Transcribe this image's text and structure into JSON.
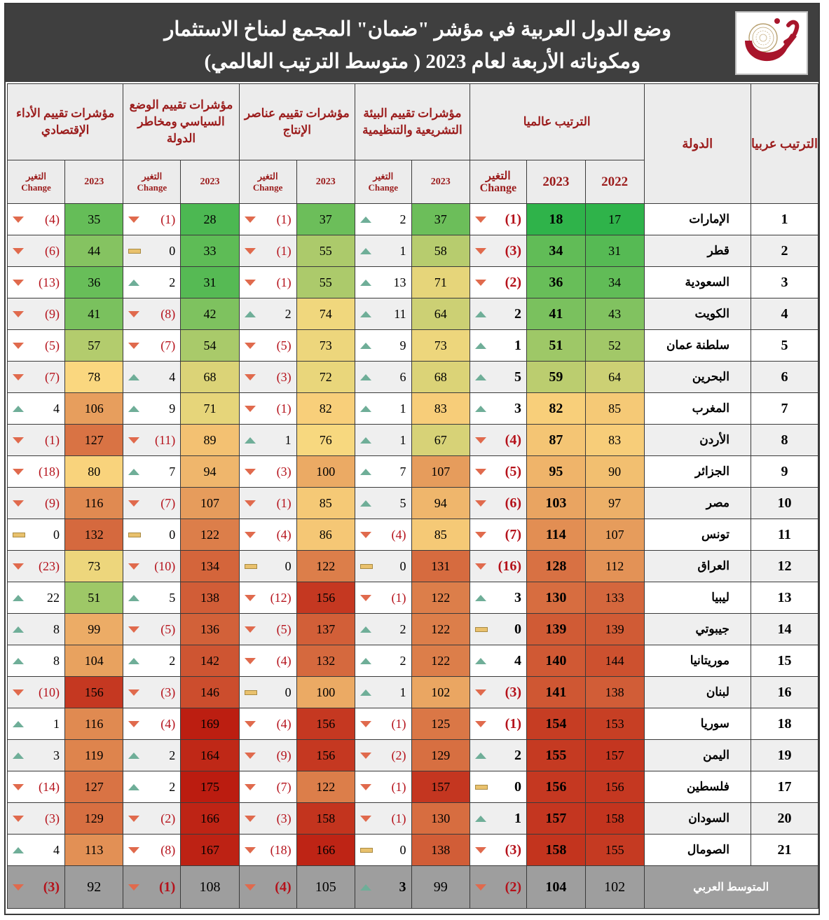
{
  "title": {
    "line1": "وضع الدول العربية في مؤشر \"ضمان\" المجمع لمناخ الاستثمار",
    "line2": "ومكوناته الأربعة لعام 2023 ( متوسط الترتيب العالمي)"
  },
  "logo": {
    "letter": "ض",
    "icon": "dhaman-logo-icon"
  },
  "headers": {
    "arab_rank": "الترتيب عربيا",
    "country": "الدولة",
    "global": "الترتيب عالميا",
    "legal": "مؤشرات تقييم البيئة التشريعية والتنظيمية",
    "production": "مؤشرات تقييم عناصر الإنتاج",
    "political": "مؤشرات تقييم الوضع السياسي ومخاطر الدولة",
    "economic": "مؤشرات تقييم الأداء الإقتصادي",
    "y2022": "2022",
    "y2023": "2023",
    "change_ar": "التغير",
    "change_en": "Change"
  },
  "colors": {
    "scale_best": "#2fb34a",
    "scale_mid": "#fbd980",
    "scale_worst": "#bb1c10",
    "down_marker": "#e06a4d",
    "up_marker": "#6fae98",
    "flat_marker": "#e9c16d",
    "header_label": "#9b1c1c"
  },
  "rows": [
    {
      "rank": "1",
      "country": "الإمارات",
      "g2022": 17,
      "g2023": 18,
      "gchg": "(1)",
      "gdir": "down",
      "legal": 37,
      "legal_chg": "2",
      "legal_dir": "up",
      "prod": 37,
      "prod_chg": "(1)",
      "prod_dir": "down",
      "pol": 28,
      "pol_chg": "(1)",
      "pol_dir": "down",
      "eco": 35,
      "eco_chg": "(4)",
      "eco_dir": "down"
    },
    {
      "rank": "2",
      "country": "قطر",
      "g2022": 31,
      "g2023": 34,
      "gchg": "(3)",
      "gdir": "down",
      "legal": 58,
      "legal_chg": "1",
      "legal_dir": "up",
      "prod": 55,
      "prod_chg": "(1)",
      "prod_dir": "down",
      "pol": 33,
      "pol_chg": "0",
      "pol_dir": "same",
      "eco": 44,
      "eco_chg": "(6)",
      "eco_dir": "down"
    },
    {
      "rank": "3",
      "country": "السعودية",
      "g2022": 34,
      "g2023": 36,
      "gchg": "(2)",
      "gdir": "down",
      "legal": 71,
      "legal_chg": "13",
      "legal_dir": "up",
      "prod": 55,
      "prod_chg": "(1)",
      "prod_dir": "down",
      "pol": 31,
      "pol_chg": "2",
      "pol_dir": "up",
      "eco": 36,
      "eco_chg": "(13)",
      "eco_dir": "down"
    },
    {
      "rank": "4",
      "country": "الكويت",
      "g2022": 43,
      "g2023": 41,
      "gchg": "2",
      "gdir": "up",
      "legal": 64,
      "legal_chg": "11",
      "legal_dir": "up",
      "prod": 74,
      "prod_chg": "2",
      "prod_dir": "up",
      "pol": 42,
      "pol_chg": "(8)",
      "pol_dir": "down",
      "eco": 41,
      "eco_chg": "(9)",
      "eco_dir": "down"
    },
    {
      "rank": "5",
      "country": "سلطنة عمان",
      "g2022": 52,
      "g2023": 51,
      "gchg": "1",
      "gdir": "up",
      "legal": 73,
      "legal_chg": "9",
      "legal_dir": "up",
      "prod": 73,
      "prod_chg": "(5)",
      "prod_dir": "down",
      "pol": 54,
      "pol_chg": "(7)",
      "pol_dir": "down",
      "eco": 57,
      "eco_chg": "(5)",
      "eco_dir": "down"
    },
    {
      "rank": "6",
      "country": "البحرين",
      "g2022": 64,
      "g2023": 59,
      "gchg": "5",
      "gdir": "up",
      "legal": 68,
      "legal_chg": "6",
      "legal_dir": "up",
      "prod": 72,
      "prod_chg": "(3)",
      "prod_dir": "down",
      "pol": 68,
      "pol_chg": "4",
      "pol_dir": "up",
      "eco": 78,
      "eco_chg": "(7)",
      "eco_dir": "down"
    },
    {
      "rank": "7",
      "country": "المغرب",
      "g2022": 85,
      "g2023": 82,
      "gchg": "3",
      "gdir": "up",
      "legal": 83,
      "legal_chg": "1",
      "legal_dir": "up",
      "prod": 82,
      "prod_chg": "(1)",
      "prod_dir": "down",
      "pol": 71,
      "pol_chg": "9",
      "pol_dir": "up",
      "eco": 106,
      "eco_chg": "4",
      "eco_dir": "up"
    },
    {
      "rank": "8",
      "country": "الأردن",
      "g2022": 83,
      "g2023": 87,
      "gchg": "(4)",
      "gdir": "down",
      "legal": 67,
      "legal_chg": "1",
      "legal_dir": "up",
      "prod": 76,
      "prod_chg": "1",
      "prod_dir": "up",
      "pol": 89,
      "pol_chg": "(11)",
      "pol_dir": "down",
      "eco": 127,
      "eco_chg": "(1)",
      "eco_dir": "down"
    },
    {
      "rank": "9",
      "country": "الجزائر",
      "g2022": 90,
      "g2023": 95,
      "gchg": "(5)",
      "gdir": "down",
      "legal": 107,
      "legal_chg": "7",
      "legal_dir": "up",
      "prod": 100,
      "prod_chg": "(3)",
      "prod_dir": "down",
      "pol": 94,
      "pol_chg": "7",
      "pol_dir": "up",
      "eco": 80,
      "eco_chg": "(18)",
      "eco_dir": "down"
    },
    {
      "rank": "10",
      "country": "مصر",
      "g2022": 97,
      "g2023": 103,
      "gchg": "(6)",
      "gdir": "down",
      "legal": 94,
      "legal_chg": "5",
      "legal_dir": "up",
      "prod": 85,
      "prod_chg": "(1)",
      "prod_dir": "down",
      "pol": 107,
      "pol_chg": "(7)",
      "pol_dir": "down",
      "eco": 116,
      "eco_chg": "(9)",
      "eco_dir": "down"
    },
    {
      "rank": "11",
      "country": "تونس",
      "g2022": 107,
      "g2023": 114,
      "gchg": "(7)",
      "gdir": "down",
      "legal": 85,
      "legal_chg": "(4)",
      "legal_dir": "down",
      "prod": 86,
      "prod_chg": "(4)",
      "prod_dir": "down",
      "pol": 122,
      "pol_chg": "0",
      "pol_dir": "same",
      "eco": 132,
      "eco_chg": "0",
      "eco_dir": "same"
    },
    {
      "rank": "12",
      "country": "العراق",
      "g2022": 112,
      "g2023": 128,
      "gchg": "(16)",
      "gdir": "down",
      "legal": 131,
      "legal_chg": "0",
      "legal_dir": "same",
      "prod": 122,
      "prod_chg": "0",
      "prod_dir": "same",
      "pol": 134,
      "pol_chg": "(10)",
      "pol_dir": "down",
      "eco": 73,
      "eco_chg": "(23)",
      "eco_dir": "down"
    },
    {
      "rank": "13",
      "country": "ليبيا",
      "g2022": 133,
      "g2023": 130,
      "gchg": "3",
      "gdir": "up",
      "legal": 122,
      "legal_chg": "(1)",
      "legal_dir": "down",
      "prod": 156,
      "prod_chg": "(12)",
      "prod_dir": "down",
      "pol": 138,
      "pol_chg": "5",
      "pol_dir": "up",
      "eco": 51,
      "eco_chg": "22",
      "eco_dir": "up"
    },
    {
      "rank": "14",
      "country": "جيبوتي",
      "g2022": 139,
      "g2023": 139,
      "gchg": "0",
      "gdir": "same",
      "legal": 122,
      "legal_chg": "2",
      "legal_dir": "up",
      "prod": 137,
      "prod_chg": "(5)",
      "prod_dir": "down",
      "pol": 136,
      "pol_chg": "(5)",
      "pol_dir": "down",
      "eco": 99,
      "eco_chg": "8",
      "eco_dir": "up"
    },
    {
      "rank": "15",
      "country": "موريتانيا",
      "g2022": 144,
      "g2023": 140,
      "gchg": "4",
      "gdir": "up",
      "legal": 122,
      "legal_chg": "2",
      "legal_dir": "up",
      "prod": 132,
      "prod_chg": "(4)",
      "prod_dir": "down",
      "pol": 142,
      "pol_chg": "2",
      "pol_dir": "up",
      "eco": 104,
      "eco_chg": "8",
      "eco_dir": "up"
    },
    {
      "rank": "16",
      "country": "لبنان",
      "g2022": 138,
      "g2023": 141,
      "gchg": "(3)",
      "gdir": "down",
      "legal": 102,
      "legal_chg": "1",
      "legal_dir": "up",
      "prod": 100,
      "prod_chg": "0",
      "prod_dir": "same",
      "pol": 146,
      "pol_chg": "(3)",
      "pol_dir": "down",
      "eco": 156,
      "eco_chg": "(10)",
      "eco_dir": "down"
    },
    {
      "rank": "18",
      "country": "سوريا",
      "g2022": 153,
      "g2023": 154,
      "gchg": "(1)",
      "gdir": "down",
      "legal": 125,
      "legal_chg": "(1)",
      "legal_dir": "down",
      "prod": 156,
      "prod_chg": "(4)",
      "prod_dir": "down",
      "pol": 169,
      "pol_chg": "(4)",
      "pol_dir": "down",
      "eco": 116,
      "eco_chg": "1",
      "eco_dir": "up"
    },
    {
      "rank": "19",
      "country": "اليمن",
      "g2022": 157,
      "g2023": 155,
      "gchg": "2",
      "gdir": "up",
      "legal": 129,
      "legal_chg": "(2)",
      "legal_dir": "down",
      "prod": 156,
      "prod_chg": "(9)",
      "prod_dir": "down",
      "pol": 164,
      "pol_chg": "2",
      "pol_dir": "up",
      "eco": 119,
      "eco_chg": "3",
      "eco_dir": "up"
    },
    {
      "rank": "17",
      "country": "فلسطين",
      "g2022": 156,
      "g2023": 156,
      "gchg": "0",
      "gdir": "same",
      "legal": 157,
      "legal_chg": "(1)",
      "legal_dir": "down",
      "prod": 122,
      "prod_chg": "(7)",
      "prod_dir": "down",
      "pol": 175,
      "pol_chg": "2",
      "pol_dir": "up",
      "eco": 127,
      "eco_chg": "(14)",
      "eco_dir": "down"
    },
    {
      "rank": "20",
      "country": "السودان",
      "g2022": 158,
      "g2023": 157,
      "gchg": "1",
      "gdir": "up",
      "legal": 130,
      "legal_chg": "(1)",
      "legal_dir": "down",
      "prod": 158,
      "prod_chg": "(3)",
      "prod_dir": "down",
      "pol": 166,
      "pol_chg": "(2)",
      "pol_dir": "down",
      "eco": 129,
      "eco_chg": "(3)",
      "eco_dir": "down"
    },
    {
      "rank": "21",
      "country": "الصومال",
      "g2022": 155,
      "g2023": 158,
      "gchg": "(3)",
      "gdir": "down",
      "legal": 138,
      "legal_chg": "0",
      "legal_dir": "same",
      "prod": 166,
      "prod_chg": "(18)",
      "prod_dir": "down",
      "pol": 167,
      "pol_chg": "(8)",
      "pol_dir": "down",
      "eco": 113,
      "eco_chg": "4",
      "eco_dir": "up"
    }
  ],
  "average": {
    "label": "المتوسط العربي",
    "g2022": 102,
    "g2023": 104,
    "gchg": "(2)",
    "gdir": "down",
    "legal": 99,
    "legal_chg": "3",
    "legal_dir": "up",
    "prod": 105,
    "prod_chg": "(4)",
    "prod_dir": "down",
    "pol": 108,
    "pol_chg": "(1)",
    "pol_dir": "down",
    "eco": 92,
    "eco_chg": "(3)",
    "eco_dir": "down"
  }
}
